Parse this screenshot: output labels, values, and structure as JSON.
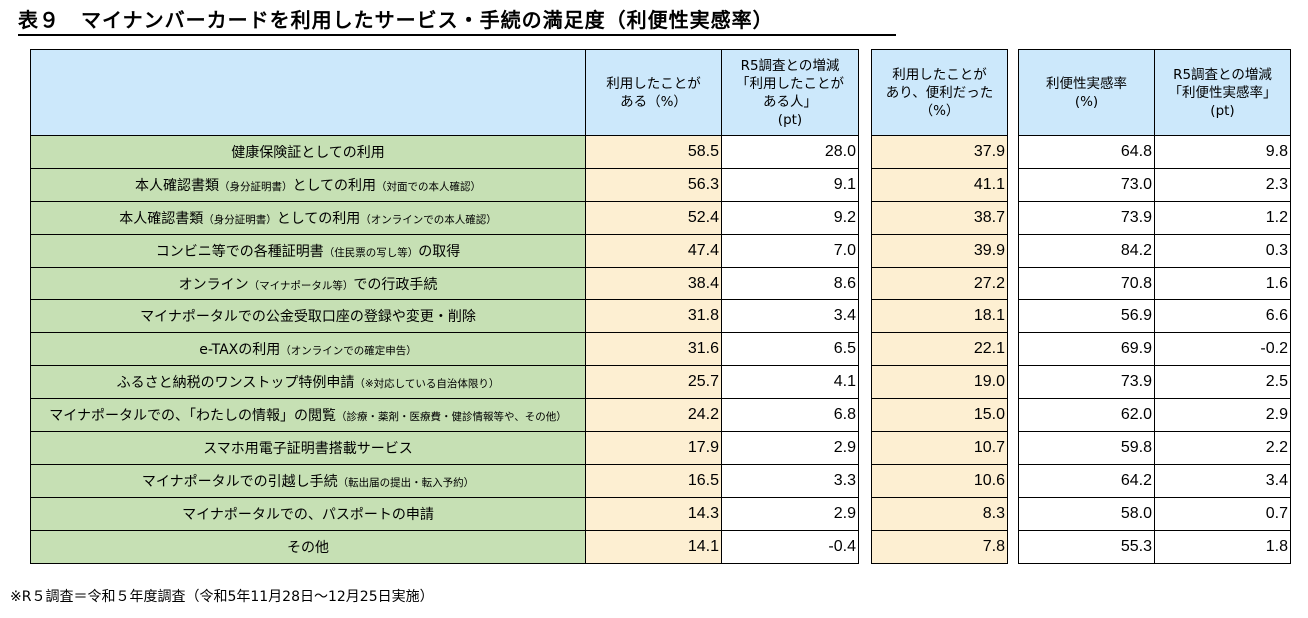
{
  "title": "表９　マイナンバーカードを利用したサービス・手続の満足度（利便性実感率）",
  "headers": {
    "used": "利用したことがある（%）",
    "used_diff": "R5調査との増減「利用したことがある人」(pt)",
    "convenient": "利用したことがあり、便利だった（%）",
    "rate": "利便性実感率(%)",
    "rate_diff": "R5調査との増減「利便性実感率」(pt)"
  },
  "rows": [
    {
      "label": "健康保険証としての利用",
      "sub": "",
      "suffix": "",
      "used": "58.5",
      "used_diff": "28.0",
      "convenient": "37.9",
      "rate": "64.8",
      "rate_diff": "9.8"
    },
    {
      "label": "本人確認書類",
      "sub": "（身分証明書）",
      "suffix": "としての利用",
      "note": "（対面での本人確認）",
      "used": "56.3",
      "used_diff": "9.1",
      "convenient": "41.1",
      "rate": "73.0",
      "rate_diff": "2.3"
    },
    {
      "label": "本人確認書類",
      "sub": "（身分証明書）",
      "suffix": "としての利用",
      "note": "（オンラインでの本人確認）",
      "used": "52.4",
      "used_diff": "9.2",
      "convenient": "38.7",
      "rate": "73.9",
      "rate_diff": "1.2"
    },
    {
      "label": "コンビニ等での各種証明書",
      "sub": "（住民票の写し等）",
      "suffix": "の取得",
      "note": "",
      "used": "47.4",
      "used_diff": "7.0",
      "convenient": "39.9",
      "rate": "84.2",
      "rate_diff": "0.3"
    },
    {
      "label": "オンライン",
      "sub": "（マイナポータル等）",
      "suffix": "での行政手続",
      "note": "",
      "used": "38.4",
      "used_diff": "8.6",
      "convenient": "27.2",
      "rate": "70.8",
      "rate_diff": "1.6"
    },
    {
      "label": "マイナポータルでの公金受取口座の登録や変更・削除",
      "sub": "",
      "suffix": "",
      "note": "",
      "used": "31.8",
      "used_diff": "3.4",
      "convenient": "18.1",
      "rate": "56.9",
      "rate_diff": "6.6"
    },
    {
      "label": "e-TAXの利用",
      "sub": "（オンラインでの確定申告）",
      "suffix": "",
      "note": "",
      "used": "31.6",
      "used_diff": "6.5",
      "convenient": "22.1",
      "rate": "69.9",
      "rate_diff": "-0.2"
    },
    {
      "label": "ふるさと納税のワンストップ特例申請",
      "sub": "（※対応している自治体限り）",
      "suffix": "",
      "note": "",
      "used": "25.7",
      "used_diff": "4.1",
      "convenient": "19.0",
      "rate": "73.9",
      "rate_diff": "2.5"
    },
    {
      "label": "マイナポータルでの、「わたしの情報」の閲覧",
      "sub": "（診療・薬剤・医療費・健診情報等や、その他）",
      "suffix": "",
      "note": "",
      "used": "24.2",
      "used_diff": "6.8",
      "convenient": "15.0",
      "rate": "62.0",
      "rate_diff": "2.9"
    },
    {
      "label": "スマホ用電子証明書搭載サービス",
      "sub": "",
      "suffix": "",
      "note": "",
      "used": "17.9",
      "used_diff": "2.9",
      "convenient": "10.7",
      "rate": "59.8",
      "rate_diff": "2.2"
    },
    {
      "label": "マイナポータルでの引越し手続",
      "sub": "（転出届の提出・転入予約）",
      "suffix": "",
      "note": "",
      "used": "16.5",
      "used_diff": "3.3",
      "convenient": "10.6",
      "rate": "64.2",
      "rate_diff": "3.4"
    },
    {
      "label": "マイナポータルでの、パスポートの申請",
      "sub": "",
      "suffix": "",
      "note": "",
      "used": "14.3",
      "used_diff": "2.9",
      "convenient": "8.3",
      "rate": "58.0",
      "rate_diff": "0.7"
    },
    {
      "label": "その他",
      "sub": "",
      "suffix": "",
      "note": "",
      "used": "14.1",
      "used_diff": "-0.4",
      "convenient": "7.8",
      "rate": "55.3",
      "rate_diff": "1.8"
    }
  ],
  "footnote": "※R５調査＝令和５年度調査（令和5年11月28日～12月25日実施）"
}
